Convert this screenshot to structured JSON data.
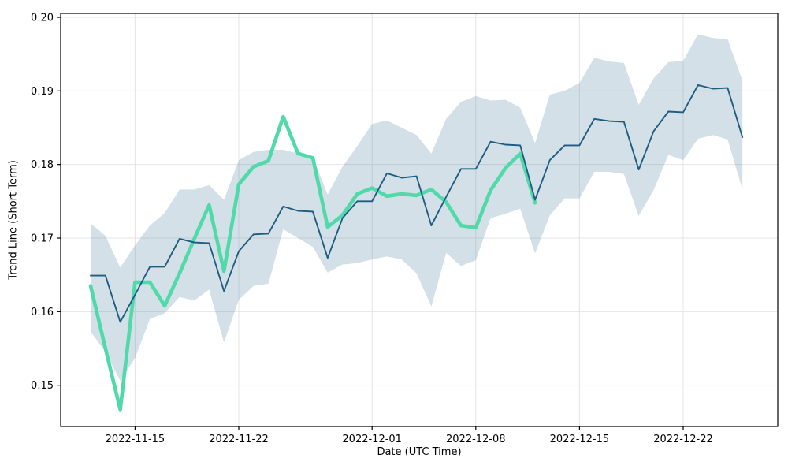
{
  "chart_data": {
    "type": "line",
    "title": "",
    "xlabel": "Date (UTC Time)",
    "ylabel": "Trend Line (Short Term)",
    "grid": true,
    "legend": "none",
    "ylim": [
      0.1444,
      0.2005
    ],
    "y_ticks": [
      0.15,
      0.16,
      0.17,
      0.18,
      0.19,
      0.2
    ],
    "x_ticks": [
      {
        "index": 3,
        "label": "2022-11-15"
      },
      {
        "index": 10,
        "label": "2022-11-22"
      },
      {
        "index": 19,
        "label": "2022-12-01"
      },
      {
        "index": 26,
        "label": "2022-12-08"
      },
      {
        "index": 33,
        "label": "2022-12-15"
      },
      {
        "index": 40,
        "label": "2022-12-22"
      }
    ],
    "x_dates": [
      "2022-11-12",
      "2022-11-13",
      "2022-11-14",
      "2022-11-15",
      "2022-11-16",
      "2022-11-17",
      "2022-11-18",
      "2022-11-19",
      "2022-11-20",
      "2022-11-21",
      "2022-11-22",
      "2022-11-23",
      "2022-11-24",
      "2022-11-25",
      "2022-11-26",
      "2022-11-27",
      "2022-11-28",
      "2022-11-29",
      "2022-11-30",
      "2022-12-01",
      "2022-12-02",
      "2022-12-03",
      "2022-12-04",
      "2022-12-05",
      "2022-12-06",
      "2022-12-07",
      "2022-12-08",
      "2022-12-09",
      "2022-12-10",
      "2022-12-11",
      "2022-12-12",
      "2022-12-13",
      "2022-12-14",
      "2022-12-15",
      "2022-12-16",
      "2022-12-17",
      "2022-12-18",
      "2022-12-19",
      "2022-12-20",
      "2022-12-21",
      "2022-12-22",
      "2022-12-23",
      "2022-12-24",
      "2022-12-25",
      "2022-12-26"
    ],
    "series": [
      {
        "name": "trend-line",
        "color": "#1e5d82",
        "width": 1.9,
        "values": [
          0.1649,
          0.1649,
          0.1586,
          0.1623,
          0.1661,
          0.1661,
          0.1699,
          0.1694,
          0.1693,
          0.1628,
          0.1682,
          0.1705,
          0.1706,
          0.1743,
          0.1737,
          0.1736,
          0.1673,
          0.1727,
          0.175,
          0.175,
          0.1788,
          0.1782,
          0.1784,
          0.1717,
          0.1756,
          0.1794,
          0.1794,
          0.1831,
          0.1827,
          0.1826,
          0.1752,
          0.1806,
          0.1826,
          0.1826,
          0.1862,
          0.1859,
          0.1858,
          0.1793,
          0.1845,
          0.1872,
          0.1871,
          0.1908,
          0.1903,
          0.1904,
          0.1837
        ]
      },
      {
        "name": "short-term-line",
        "color": "#50d9a9",
        "width": 4.6,
        "values": [
          0.1635,
          0.155,
          0.1467,
          0.164,
          0.164,
          0.1608,
          0.1652,
          0.1699,
          0.1745,
          0.1655,
          0.1773,
          0.1797,
          0.1805,
          0.1865,
          0.1815,
          0.1809,
          0.1715,
          0.1731,
          0.176,
          0.1768,
          0.1757,
          0.176,
          0.1758,
          0.1766,
          0.1749,
          0.1717,
          0.1714,
          0.1765,
          0.1795,
          0.1815,
          0.1748
        ]
      }
    ],
    "band": {
      "name": "confidence-band",
      "fill": "rgba(96,142,168,0.28)",
      "upper": [
        0.172,
        0.1703,
        0.166,
        0.169,
        0.1717,
        0.1734,
        0.1766,
        0.1766,
        0.1772,
        0.1752,
        0.1806,
        0.1817,
        0.182,
        0.182,
        0.1815,
        0.181,
        0.1759,
        0.1797,
        0.1825,
        0.1855,
        0.186,
        0.185,
        0.184,
        0.1815,
        0.1862,
        0.1885,
        0.1893,
        0.1887,
        0.1888,
        0.1877,
        0.1829,
        0.1895,
        0.19,
        0.1911,
        0.1945,
        0.194,
        0.1938,
        0.1881,
        0.1917,
        0.1939,
        0.1941,
        0.1977,
        0.1972,
        0.197,
        0.1914
      ],
      "lower": [
        0.1573,
        0.1545,
        0.1506,
        0.1537,
        0.159,
        0.1598,
        0.162,
        0.1615,
        0.163,
        0.1558,
        0.1616,
        0.1635,
        0.1638,
        0.1712,
        0.17,
        0.1688,
        0.1653,
        0.1664,
        0.1666,
        0.1671,
        0.1675,
        0.1671,
        0.1652,
        0.1607,
        0.168,
        0.1662,
        0.167,
        0.1727,
        0.1733,
        0.174,
        0.1679,
        0.1731,
        0.1754,
        0.1754,
        0.179,
        0.179,
        0.1787,
        0.173,
        0.1765,
        0.1813,
        0.1806,
        0.1835,
        0.184,
        0.1834,
        0.1766
      ]
    },
    "colors": {
      "background": "#ffffff",
      "gridline": "#e4e4e4",
      "spine": "#000000",
      "tick_text": "#000000"
    }
  }
}
